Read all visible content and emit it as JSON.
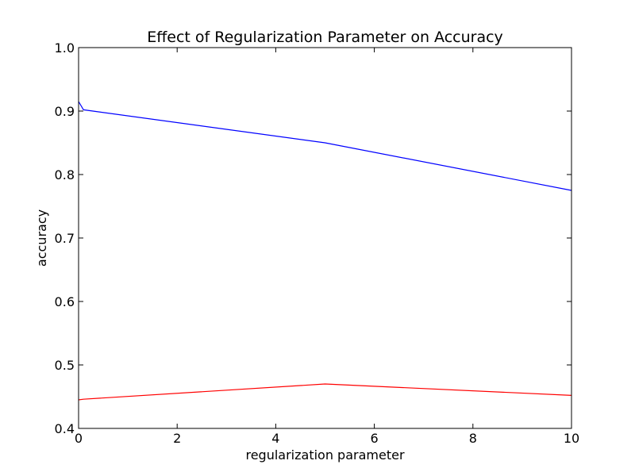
{
  "chart_data": {
    "type": "line",
    "title": "Effect of Regularization Parameter on Accuracy",
    "xlabel": "regularization parameter",
    "ylabel": "accuracy",
    "xlim": [
      0,
      10
    ],
    "ylim": [
      0.4,
      1.0
    ],
    "xticks": [
      0,
      2,
      4,
      6,
      8,
      10
    ],
    "xtick_labels": [
      "0",
      "2",
      "4",
      "6",
      "8",
      "10"
    ],
    "yticks": [
      0.4,
      0.5,
      0.6,
      0.7,
      0.8,
      0.9,
      1.0
    ],
    "ytick_labels": [
      "0.4",
      "0.5",
      "0.6",
      "0.7",
      "0.8",
      "0.9",
      "1.0"
    ],
    "grid": false,
    "legend": false,
    "series": [
      {
        "color": "#0000ff",
        "x": [
          0,
          0.1,
          5,
          10
        ],
        "y": [
          0.915,
          0.902,
          0.85,
          0.775
        ]
      },
      {
        "color": "#ff0000",
        "x": [
          0,
          0.1,
          5,
          10
        ],
        "y": [
          0.445,
          0.446,
          0.47,
          0.452
        ]
      }
    ]
  }
}
